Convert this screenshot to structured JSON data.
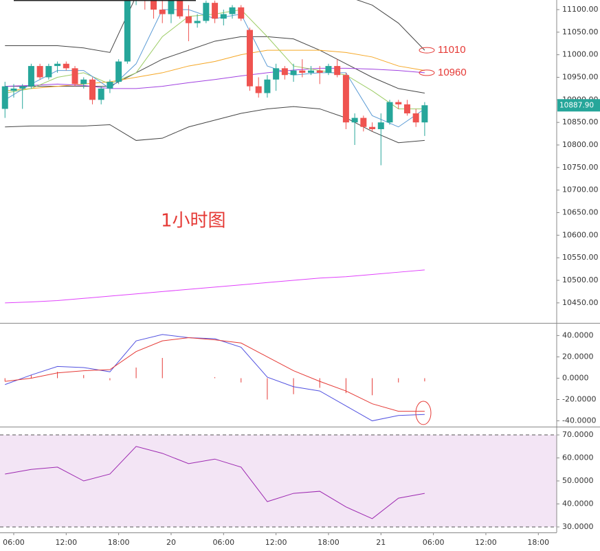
{
  "chart_data": [
    {
      "type": "candlestick",
      "up_color": "#26a69a",
      "down_color": "#ef5350",
      "x": [
        -1,
        0,
        1,
        2,
        3,
        4,
        5,
        6,
        7,
        8,
        9,
        10,
        11,
        12,
        13,
        14,
        15,
        16,
        17,
        18,
        19,
        20,
        21,
        22,
        23,
        24,
        25,
        26,
        27,
        28,
        29,
        30,
        31,
        32,
        33,
        34,
        35,
        36,
        37,
        38,
        39,
        40,
        41,
        42,
        43,
        44,
        45,
        46,
        47
      ],
      "open": [
        10880,
        10920,
        10925,
        10930,
        10975,
        10950,
        10975,
        10980,
        10970,
        10935,
        10945,
        10900,
        10925,
        10940,
        10985,
        11140,
        11150,
        11120,
        11100,
        11090,
        11120,
        11085,
        11070,
        11075,
        11115,
        11080,
        11090,
        11105,
        11055,
        10930,
        10915,
        10945,
        10970,
        10955,
        10965,
        10960,
        10965,
        10960,
        10975,
        10955,
        10850,
        10860,
        10840,
        10835,
        10850,
        10895,
        10890,
        10870,
        10850
      ],
      "high": [
        10940,
        10935,
        10935,
        10980,
        10980,
        10980,
        10985,
        10985,
        10975,
        10950,
        10950,
        10930,
        10945,
        10990,
        11150,
        11180,
        11160,
        11150,
        11130,
        11130,
        11140,
        11110,
        11090,
        11120,
        11120,
        11100,
        11110,
        11110,
        11060,
        10950,
        10955,
        10980,
        10975,
        10980,
        10990,
        10975,
        10975,
        10980,
        10990,
        10960,
        10870,
        10865,
        10850,
        10870,
        10900,
        10900,
        10900,
        10880,
        10895
      ],
      "low": [
        10860,
        10905,
        10880,
        10925,
        10945,
        10945,
        10960,
        10965,
        10930,
        10925,
        10890,
        10890,
        10915,
        10935,
        10980,
        11110,
        11100,
        11080,
        11070,
        11070,
        11080,
        11030,
        11060,
        11070,
        11070,
        11065,
        11080,
        11075,
        10920,
        10905,
        10905,
        10920,
        10945,
        10940,
        10950,
        10955,
        10935,
        10955,
        10950,
        10835,
        10800,
        10830,
        10830,
        10755,
        10845,
        10880,
        10865,
        10840,
        10820
      ],
      "close": [
        10930,
        10925,
        10930,
        10975,
        10950,
        10975,
        10980,
        10970,
        10935,
        10945,
        10900,
        10925,
        10940,
        10985,
        11140,
        11160,
        11120,
        11100,
        11090,
        11120,
        11085,
        11070,
        11075,
        11115,
        11080,
        11090,
        11105,
        11080,
        10930,
        10915,
        10945,
        10970,
        10955,
        10965,
        10960,
        10965,
        10960,
        10975,
        10955,
        10850,
        10860,
        10840,
        10835,
        10850,
        10895,
        10890,
        10870,
        10850,
        10888
      ],
      "overlays": [
        {
          "color": "#444444",
          "x": [
            -1,
            2,
            5,
            8,
            11,
            14,
            17,
            20,
            23,
            26,
            29,
            32,
            35,
            38,
            41,
            44,
            47
          ],
          "values": [
            11020,
            11020,
            11020,
            11015,
            11005,
            11130,
            11140,
            11150,
            11150,
            11150,
            11160,
            11160,
            11150,
            11130,
            11110,
            11070,
            11010
          ]
        },
        {
          "color": "#444444",
          "x": [
            -1,
            2,
            5,
            8,
            11,
            14,
            17,
            20,
            23,
            26,
            29,
            32,
            35,
            38,
            41,
            44,
            47
          ],
          "values": [
            10930,
            10930,
            10930,
            10930,
            10930,
            10960,
            10990,
            11010,
            11030,
            11040,
            11040,
            11035,
            11010,
            10980,
            10950,
            10925,
            10915
          ]
        },
        {
          "color": "#444444",
          "x": [
            -1,
            2,
            5,
            8,
            11,
            14,
            17,
            20,
            23,
            26,
            29,
            32,
            35,
            38,
            41,
            44,
            47
          ],
          "values": [
            10840,
            10842,
            10842,
            10842,
            10845,
            10810,
            10815,
            10840,
            10855,
            10870,
            10880,
            10885,
            10880,
            10860,
            10830,
            10805,
            10810
          ]
        },
        {
          "color": "#f5a623",
          "x": [
            -1,
            2,
            5,
            8,
            11,
            14,
            17,
            20,
            23,
            26,
            29,
            32,
            35,
            38,
            41,
            44,
            47
          ],
          "values": [
            10920,
            10925,
            10930,
            10935,
            10940,
            10950,
            10960,
            10975,
            10985,
            11000,
            11010,
            11010,
            11010,
            11005,
            10995,
            10975,
            10965
          ]
        },
        {
          "color": "#a040e0",
          "x": [
            -1,
            2,
            5,
            8,
            11,
            14,
            17,
            20,
            23,
            26,
            29,
            32,
            35,
            38,
            41,
            44,
            47
          ],
          "values": [
            10930,
            10932,
            10935,
            10932,
            10925,
            10925,
            10930,
            10938,
            10945,
            10953,
            10960,
            10966,
            10970,
            10970,
            10968,
            10965,
            10960
          ]
        },
        {
          "color": "#9ccc65",
          "x": [
            -1,
            2,
            5,
            8,
            11,
            14,
            17,
            20,
            23,
            26,
            29,
            32,
            35,
            38,
            41,
            44,
            47
          ],
          "values": [
            10915,
            10925,
            10950,
            10960,
            10935,
            10960,
            11040,
            11085,
            11090,
            11100,
            11040,
            10975,
            10965,
            10955,
            10920,
            10880,
            10880
          ]
        },
        {
          "color": "#5b9bd5",
          "x": [
            -1,
            2,
            5,
            8,
            11,
            14,
            17,
            20,
            23,
            26,
            29,
            32,
            35,
            38,
            41,
            44,
            47
          ],
          "values": [
            10900,
            10935,
            10965,
            10965,
            10925,
            10980,
            11100,
            11100,
            11080,
            11090,
            10975,
            10955,
            10960,
            10960,
            10865,
            10840,
            10880
          ]
        },
        {
          "color": "#e040fb",
          "x": [
            -1,
            2,
            5,
            8,
            11,
            14,
            17,
            20,
            23,
            26,
            29,
            32,
            35,
            38,
            41,
            44,
            47
          ],
          "values": [
            10450,
            10452,
            10455,
            10460,
            10465,
            10470,
            10475,
            10480,
            10485,
            10490,
            10495,
            10500,
            10505,
            10508,
            10513,
            10518,
            10523
          ]
        }
      ],
      "ylim": [
        10405.6,
        11121.3
      ],
      "yticks": [
        {
          "value": 11100,
          "label": "11100.00"
        },
        {
          "value": 11050,
          "label": "11050.00"
        },
        {
          "value": 11000,
          "label": "11000.00"
        },
        {
          "value": 10950,
          "label": "10950.00"
        },
        {
          "value": 10900,
          "label": "10900.00"
        },
        {
          "value": 10850,
          "label": "10850.00"
        },
        {
          "value": 10800,
          "label": "10800.00"
        },
        {
          "value": 10750,
          "label": "10750.00"
        },
        {
          "value": 10700,
          "label": "10700.00"
        },
        {
          "value": 10650,
          "label": "10650.00"
        },
        {
          "value": 10600,
          "label": "10600.00"
        },
        {
          "value": 10550,
          "label": "10550.00"
        },
        {
          "value": 10500,
          "label": "10500.00"
        },
        {
          "value": 10450,
          "label": "10450.00"
        }
      ],
      "last_price": {
        "value": 10887.9,
        "label": "10887.90"
      },
      "annotations": [
        {
          "text": "11010",
          "y": 11010
        },
        {
          "text": "10960",
          "y": 10960
        },
        {
          "text": "1小时图"
        }
      ]
    },
    {
      "type": "line",
      "histogram_color": "#e53935",
      "x": [
        -1,
        2,
        5,
        8,
        11,
        14,
        17,
        20,
        23,
        26,
        29,
        32,
        35,
        38,
        41,
        44,
        47
      ],
      "series": [
        {
          "color": "#5050e0",
          "values": [
            -6,
            3,
            11,
            10,
            6,
            35,
            41,
            38,
            37,
            29,
            1,
            -8,
            -12,
            -26,
            -40,
            -35,
            -34
          ]
        },
        {
          "color": "#e53935",
          "values": [
            -3,
            0,
            5,
            7,
            8,
            25,
            35,
            38,
            36,
            33,
            20,
            7,
            -3,
            -12,
            -24,
            -31,
            -31
          ]
        }
      ],
      "histogram": [
        -3,
        3,
        6,
        3,
        -2,
        10,
        19,
        0,
        1,
        -4,
        -20,
        -15,
        -9,
        -14,
        -16,
        -4,
        -3
      ],
      "ylim": [
        -44.8,
        51.2
      ],
      "yticks": [
        {
          "value": 40,
          "label": "40.0000"
        },
        {
          "value": 20,
          "label": "20.0000"
        },
        {
          "value": 0,
          "label": "0.0000"
        },
        {
          "value": -20,
          "label": "-20.0000"
        },
        {
          "value": -40,
          "label": "-40.0000"
        }
      ]
    },
    {
      "type": "line",
      "band": [
        30,
        70
      ],
      "band_color": "#f3e5f5",
      "x": [
        -1,
        2,
        5,
        8,
        11,
        14,
        17,
        20,
        23,
        26,
        29,
        32,
        35,
        38,
        41,
        44,
        47
      ],
      "series": [
        {
          "color": "#9c27b0",
          "values": [
            53,
            55,
            56,
            50,
            53,
            65,
            62,
            57.5,
            59.5,
            56,
            41,
            44.6,
            45.5,
            38.7,
            33.6,
            42.5,
            44.6
          ]
        }
      ],
      "ylim": [
        27.6,
        73.3
      ],
      "yticks": [
        {
          "value": 70,
          "label": "70.0000"
        },
        {
          "value": 60,
          "label": "60.0000"
        },
        {
          "value": 50,
          "label": "50.0000"
        },
        {
          "value": 40,
          "label": "40.0000"
        },
        {
          "value": 30,
          "label": "30.0000"
        }
      ],
      "xlim": [
        -1.57,
        62.1
      ],
      "xticks": [
        {
          "value": 0,
          "label": "06:00"
        },
        {
          "value": 6,
          "label": "12:00"
        },
        {
          "value": 12,
          "label": "18:00"
        },
        {
          "value": 18,
          "label": "20"
        },
        {
          "value": 24,
          "label": "06:00"
        },
        {
          "value": 30,
          "label": "12:00"
        },
        {
          "value": 36,
          "label": "18:00"
        },
        {
          "value": 42,
          "label": "21"
        },
        {
          "value": 48,
          "label": "06:00"
        },
        {
          "value": 54,
          "label": "12:00"
        },
        {
          "value": 60,
          "label": "18:00"
        }
      ]
    }
  ]
}
